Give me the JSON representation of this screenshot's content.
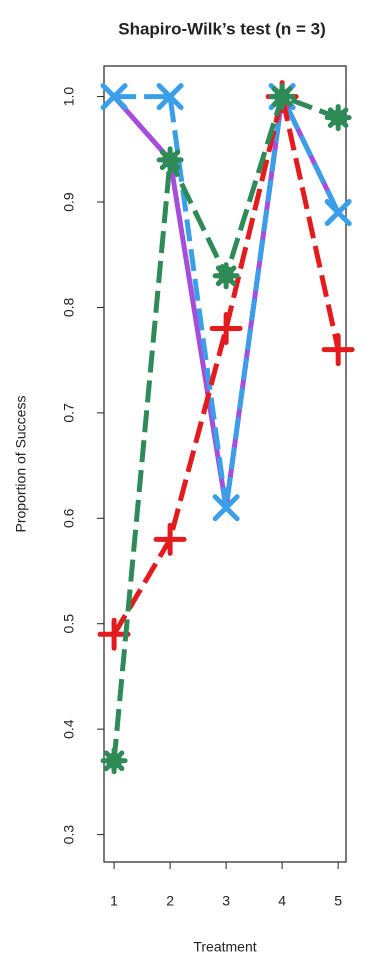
{
  "chart_data": {
    "type": "line",
    "title": "Shapiro-Wilk’s test (n = 3)",
    "x_label": "Treatment",
    "y_label": "Proportion of Success",
    "x": [
      1,
      2,
      3,
      4,
      5
    ],
    "xlim": [
      0.82,
      5.14
    ],
    "xticks": [
      1,
      2,
      3,
      4,
      5
    ],
    "ylim": [
      0.274,
      1.029
    ],
    "yticks": [
      0.3,
      0.4,
      0.5,
      0.6,
      0.7,
      0.8,
      0.9,
      {
        "value": 1,
        "label": "1.0"
      }
    ],
    "series": [
      {
        "color": "#a64ddb",
        "dash": "solid",
        "marker": "none",
        "values": [
          1,
          0.94,
          0.61,
          1,
          0.89
        ]
      },
      {
        "color": "#3a9ee8",
        "dash": "long",
        "marker": "x",
        "values": [
          1,
          1,
          0.61,
          1,
          0.89
        ]
      },
      {
        "color": "#e41a1c",
        "dash": "long",
        "marker": "plus",
        "values": [
          0.49,
          0.58,
          0.78,
          1,
          0.76
        ]
      },
      {
        "color": "#2e8b57",
        "dash": "long",
        "marker": "star",
        "values": [
          0.37,
          0.94,
          0.83,
          1,
          0.98
        ]
      }
    ]
  }
}
